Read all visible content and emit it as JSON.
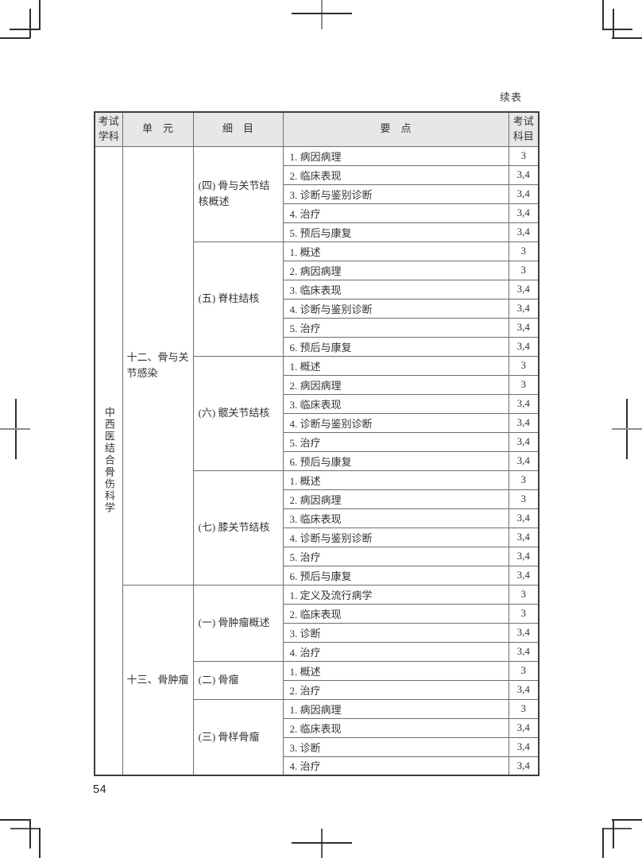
{
  "page": {
    "continued_label": "续表",
    "page_number": "54"
  },
  "colors": {
    "header_background": "#e7e7e7",
    "table_border": "#3d3d3d",
    "inner_border": "#6e6e6e",
    "text": "#333333"
  },
  "table": {
    "headers": [
      "考试学科",
      "单　元",
      "细　目",
      "要　点",
      "考试科目"
    ],
    "subject": "中西医结合骨伤科学",
    "units": [
      {
        "name": "十二、骨与关节感染",
        "items": [
          {
            "name": "(四) 骨与关节结核概述",
            "points": [
              {
                "text": "1. 病因病理",
                "codes": "3"
              },
              {
                "text": "2. 临床表现",
                "codes": "3,4"
              },
              {
                "text": "3. 诊断与鉴别诊断",
                "codes": "3,4"
              },
              {
                "text": "4. 治疗",
                "codes": "3,4"
              },
              {
                "text": "5. 预后与康复",
                "codes": "3,4"
              }
            ]
          },
          {
            "name": "(五) 脊柱结核",
            "points": [
              {
                "text": "1. 概述",
                "codes": "3"
              },
              {
                "text": "2. 病因病理",
                "codes": "3"
              },
              {
                "text": "3. 临床表现",
                "codes": "3,4"
              },
              {
                "text": "4. 诊断与鉴别诊断",
                "codes": "3,4"
              },
              {
                "text": "5. 治疗",
                "codes": "3,4"
              },
              {
                "text": "6. 预后与康复",
                "codes": "3,4"
              }
            ]
          },
          {
            "name": "(六) 髋关节结核",
            "points": [
              {
                "text": "1. 概述",
                "codes": "3"
              },
              {
                "text": "2. 病因病理",
                "codes": "3"
              },
              {
                "text": "3. 临床表现",
                "codes": "3,4"
              },
              {
                "text": "4. 诊断与鉴别诊断",
                "codes": "3,4"
              },
              {
                "text": "5. 治疗",
                "codes": "3,4"
              },
              {
                "text": "6. 预后与康复",
                "codes": "3,4"
              }
            ]
          },
          {
            "name": "(七) 膝关节结核",
            "points": [
              {
                "text": "1. 概述",
                "codes": "3"
              },
              {
                "text": "2. 病因病理",
                "codes": "3"
              },
              {
                "text": "3. 临床表现",
                "codes": "3,4"
              },
              {
                "text": "4. 诊断与鉴别诊断",
                "codes": "3,4"
              },
              {
                "text": "5. 治疗",
                "codes": "3,4"
              },
              {
                "text": "6. 预后与康复",
                "codes": "3,4"
              }
            ]
          }
        ]
      },
      {
        "name": "十三、骨肿瘤",
        "items": [
          {
            "name": "(一) 骨肿瘤概述",
            "points": [
              {
                "text": "1. 定义及流行病学",
                "codes": "3"
              },
              {
                "text": "2. 临床表现",
                "codes": "3"
              },
              {
                "text": "3. 诊断",
                "codes": "3,4"
              },
              {
                "text": "4. 治疗",
                "codes": "3,4"
              }
            ]
          },
          {
            "name": "(二) 骨瘤",
            "points": [
              {
                "text": "1. 概述",
                "codes": "3"
              },
              {
                "text": "2. 治疗",
                "codes": "3,4"
              }
            ]
          },
          {
            "name": "(三) 骨样骨瘤",
            "points": [
              {
                "text": "1. 病因病理",
                "codes": "3"
              },
              {
                "text": "2. 临床表现",
                "codes": "3,4"
              },
              {
                "text": "3. 诊断",
                "codes": "3,4"
              },
              {
                "text": "4. 治疗",
                "codes": "3,4"
              }
            ]
          }
        ]
      }
    ]
  }
}
